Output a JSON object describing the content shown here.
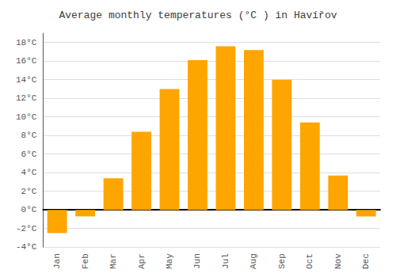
{
  "chart_data": {
    "type": "bar",
    "title": "Average monthly temperatures (°C ) in Havířov",
    "categories": [
      "Jan",
      "Feb",
      "Mar",
      "Apr",
      "May",
      "Jun",
      "Jul",
      "Aug",
      "Sep",
      "Oct",
      "Nov",
      "Dec"
    ],
    "values": [
      -2.5,
      -0.7,
      3.4,
      8.4,
      13.0,
      16.1,
      17.6,
      17.2,
      14.0,
      9.4,
      3.7,
      -0.7
    ],
    "color": "#FFA500",
    "ylim": [
      -4,
      19
    ],
    "yticks": [
      {
        "value": -4,
        "label": "-4°C"
      },
      {
        "value": -2,
        "label": "-2°C"
      },
      {
        "value": 0,
        "label": "0°C"
      },
      {
        "value": 2,
        "label": "2°C"
      },
      {
        "value": 4,
        "label": "4°C"
      },
      {
        "value": 6,
        "label": "6°C"
      },
      {
        "value": 8,
        "label": "8°C"
      },
      {
        "value": 10,
        "label": "10°C"
      },
      {
        "value": 12,
        "label": "12°C"
      },
      {
        "value": 14,
        "label": "14°C"
      },
      {
        "value": 16,
        "label": "16°C"
      },
      {
        "value": 18,
        "label": "18°C"
      }
    ],
    "grid": true
  }
}
